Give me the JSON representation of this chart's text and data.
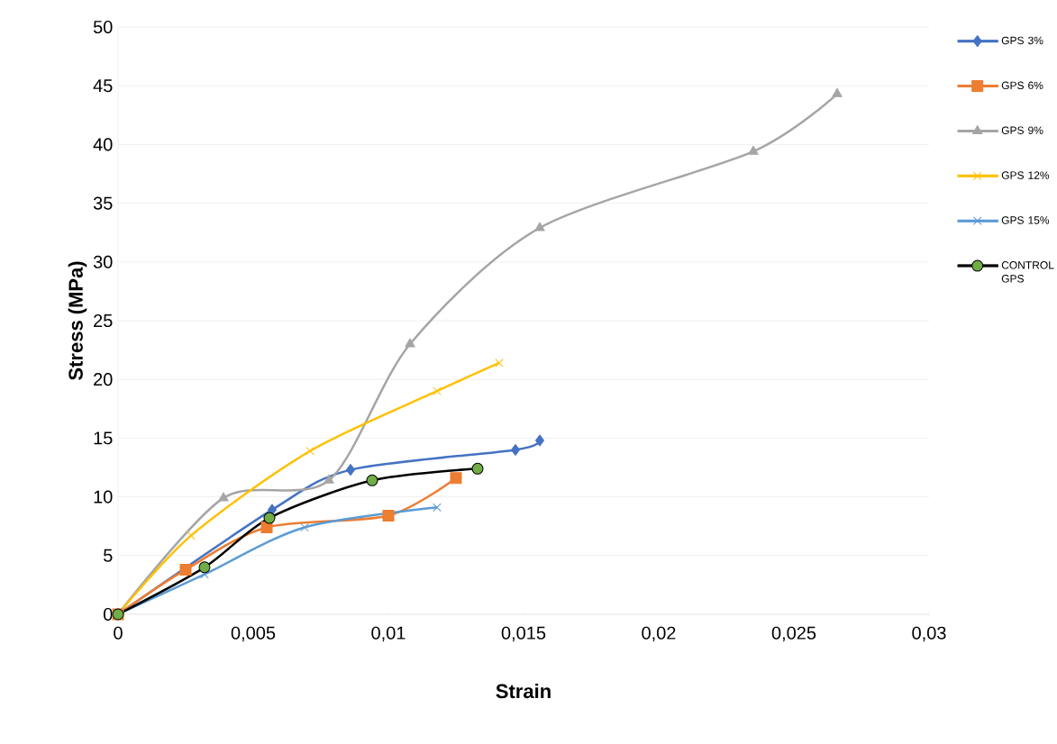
{
  "chart_data": {
    "type": "line",
    "xlabel": "Strain",
    "ylabel": "Stress (MPa)",
    "xlim": [
      0,
      0.03
    ],
    "ylim": [
      0,
      50
    ],
    "xticks": [
      0,
      {
        "value": 0.005,
        "label": "0,005"
      },
      {
        "value": 0.01,
        "label": "0,01"
      },
      {
        "value": 0.015,
        "label": "0,015"
      },
      {
        "value": 0.02,
        "label": "0,02"
      },
      {
        "value": 0.025,
        "label": "0,025"
      },
      {
        "value": 0.03,
        "label": "0,03"
      }
    ],
    "yticks": [
      0,
      5,
      10,
      15,
      20,
      25,
      30,
      35,
      40,
      45,
      50
    ],
    "grid": "y",
    "legend": "right",
    "series": [
      {
        "name": "GPS 3%",
        "color": "#4472c4",
        "marker": "diamond",
        "x": [
          0,
          0.0057,
          0.0086,
          0.0147,
          0.0156
        ],
        "values": [
          0,
          8.9,
          12.3,
          14.0,
          14.8
        ]
      },
      {
        "name": "GPS 6%",
        "color": "#ed7d31",
        "marker": "square",
        "x": [
          0,
          0.0025,
          0.0055,
          0.01,
          0.0125
        ],
        "values": [
          0,
          3.8,
          7.4,
          8.4,
          11.6
        ]
      },
      {
        "name": "GPS 9%",
        "color": "#a5a5a5",
        "marker": "triangle",
        "x": [
          0,
          0.0039,
          0.0078,
          0.0108,
          0.0156,
          0.0235,
          0.0266
        ],
        "values": [
          0,
          9.9,
          11.4,
          23.0,
          32.9,
          39.4,
          44.3
        ]
      },
      {
        "name": "GPS 12%",
        "color": "#ffc000",
        "marker": "cross",
        "x": [
          0,
          0.0027,
          0.0071,
          0.0118,
          0.0141
        ],
        "values": [
          0,
          6.7,
          13.9,
          19.0,
          21.4
        ]
      },
      {
        "name": "GPS 15%",
        "color": "#5b9bd5",
        "marker": "cross",
        "x": [
          0,
          0.0032,
          0.0069,
          0.0118
        ],
        "values": [
          0,
          3.4,
          7.4,
          9.1
        ]
      },
      {
        "name": "CONTROL GPS",
        "color": "#000000",
        "marker": "circle",
        "x": [
          0,
          0.0032,
          0.0056,
          0.0094,
          0.0133
        ],
        "values": [
          0,
          4.0,
          8.2,
          11.4,
          12.4
        ]
      }
    ]
  }
}
